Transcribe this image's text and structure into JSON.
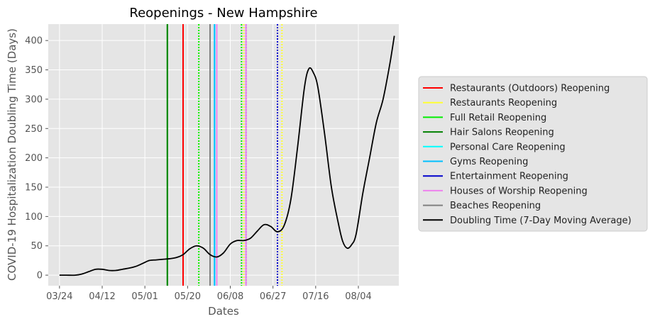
{
  "chart_data": {
    "type": "line",
    "title": "Reopenings - New Hampshire",
    "xlabel": "Dates",
    "ylabel": "COVID-19 Hospitalization Doubling Time (Days)",
    "x_axis": {
      "type": "date",
      "range": [
        "2020-03-19",
        "2020-08-22"
      ]
    },
    "y_axis": {
      "range": [
        -18,
        428
      ]
    },
    "x_ticks": [
      {
        "date": "2020-03-24",
        "label": "03/24"
      },
      {
        "date": "2020-04-12",
        "label": "04/12"
      },
      {
        "date": "2020-05-01",
        "label": "05/01"
      },
      {
        "date": "2020-05-20",
        "label": "05/20"
      },
      {
        "date": "2020-06-08",
        "label": "06/08"
      },
      {
        "date": "2020-06-27",
        "label": "06/27"
      },
      {
        "date": "2020-07-16",
        "label": "07/16"
      },
      {
        "date": "2020-08-04",
        "label": "08/04"
      }
    ],
    "y_ticks": [
      0,
      50,
      100,
      150,
      200,
      250,
      300,
      350,
      400
    ],
    "grid": true,
    "legend_position": "right",
    "reopenings": [
      {
        "name": "Restaurants (Outdoors) Reopening",
        "color": "#ff0000",
        "dates": [
          "2020-05-18"
        ],
        "style": "solid"
      },
      {
        "name": "Restaurants Reopening",
        "color": "#ffff33",
        "dates": [
          "2020-05-25",
          "2020-06-14",
          "2020-06-29",
          "2020-07-01"
        ],
        "style": "dotted"
      },
      {
        "name": "Full Retail Reopening",
        "color": "#00ee00",
        "dates": [
          "2020-05-11",
          "2020-05-25",
          "2020-06-13"
        ],
        "style": "mixed"
      },
      {
        "name": "Hair Salons Reopening",
        "color": "#008000",
        "dates": [
          "2020-05-11"
        ],
        "style": "solid"
      },
      {
        "name": "Personal Care Reopening",
        "color": "#00ffff",
        "dates": [
          "2020-06-01"
        ],
        "style": "solid"
      },
      {
        "name": "Gyms Reopening",
        "color": "#00bfff",
        "dates": [
          "2020-06-01"
        ],
        "style": "solid"
      },
      {
        "name": "Entertainment Reopening",
        "color": "#0000cc",
        "dates": [
          "2020-06-15",
          "2020-06-29"
        ],
        "style": "dotted"
      },
      {
        "name": "Houses of Worship Reopening",
        "color": "#ee82ee",
        "dates": [
          "2020-06-02",
          "2020-06-15"
        ],
        "style": "solid"
      },
      {
        "name": "Beaches Reopening",
        "color": "#808080",
        "dates": [
          "2020-05-30"
        ],
        "style": "solid"
      }
    ],
    "series": [
      {
        "name": "Doubling Time (7-Day Moving Average)",
        "color": "#000000",
        "points": [
          [
            "2020-03-24",
            0
          ],
          [
            "2020-03-27",
            0
          ],
          [
            "2020-03-31",
            0
          ],
          [
            "2020-04-03",
            2
          ],
          [
            "2020-04-06",
            6
          ],
          [
            "2020-04-09",
            10
          ],
          [
            "2020-04-12",
            10
          ],
          [
            "2020-04-15",
            8
          ],
          [
            "2020-04-18",
            8
          ],
          [
            "2020-04-21",
            10
          ],
          [
            "2020-04-24",
            12
          ],
          [
            "2020-04-27",
            15
          ],
          [
            "2020-04-30",
            20
          ],
          [
            "2020-05-03",
            25
          ],
          [
            "2020-05-06",
            26
          ],
          [
            "2020-05-09",
            27
          ],
          [
            "2020-05-12",
            28
          ],
          [
            "2020-05-15",
            30
          ],
          [
            "2020-05-18",
            35
          ],
          [
            "2020-05-21",
            45
          ],
          [
            "2020-05-24",
            50
          ],
          [
            "2020-05-27",
            46
          ],
          [
            "2020-05-30",
            35
          ],
          [
            "2020-06-02",
            31
          ],
          [
            "2020-06-05",
            38
          ],
          [
            "2020-06-08",
            53
          ],
          [
            "2020-06-11",
            59
          ],
          [
            "2020-06-14",
            59
          ],
          [
            "2020-06-17",
            63
          ],
          [
            "2020-06-20",
            75
          ],
          [
            "2020-06-23",
            86
          ],
          [
            "2020-06-26",
            83
          ],
          [
            "2020-06-29",
            74
          ],
          [
            "2020-07-02",
            85
          ],
          [
            "2020-07-05",
            130
          ],
          [
            "2020-07-08",
            220
          ],
          [
            "2020-07-11",
            320
          ],
          [
            "2020-07-13",
            352
          ],
          [
            "2020-07-15",
            345
          ],
          [
            "2020-07-17",
            320
          ],
          [
            "2020-07-20",
            240
          ],
          [
            "2020-07-23",
            150
          ],
          [
            "2020-07-26",
            90
          ],
          [
            "2020-07-28",
            58
          ],
          [
            "2020-07-30",
            46
          ],
          [
            "2020-08-01",
            52
          ],
          [
            "2020-08-03",
            70
          ],
          [
            "2020-08-06",
            140
          ],
          [
            "2020-08-09",
            200
          ],
          [
            "2020-08-12",
            260
          ],
          [
            "2020-08-15",
            300
          ],
          [
            "2020-08-18",
            360
          ],
          [
            "2020-08-20",
            408
          ]
        ]
      }
    ]
  },
  "legend": {
    "items": [
      {
        "label": "Restaurants (Outdoors) Reopening",
        "color": "#ff0000"
      },
      {
        "label": "Restaurants Reopening",
        "color": "#ffff33"
      },
      {
        "label": "Full Retail Reopening",
        "color": "#00ee00"
      },
      {
        "label": "Hair Salons Reopening",
        "color": "#008000"
      },
      {
        "label": "Personal Care Reopening",
        "color": "#00ffff"
      },
      {
        "label": "Gyms Reopening",
        "color": "#00bfff"
      },
      {
        "label": "Entertainment Reopening",
        "color": "#0000cc"
      },
      {
        "label": "Houses of Worship Reopening",
        "color": "#ee82ee"
      },
      {
        "label": "Beaches Reopening",
        "color": "#808080"
      },
      {
        "label": "Doubling Time (7-Day Moving Average)",
        "color": "#000000"
      }
    ]
  }
}
